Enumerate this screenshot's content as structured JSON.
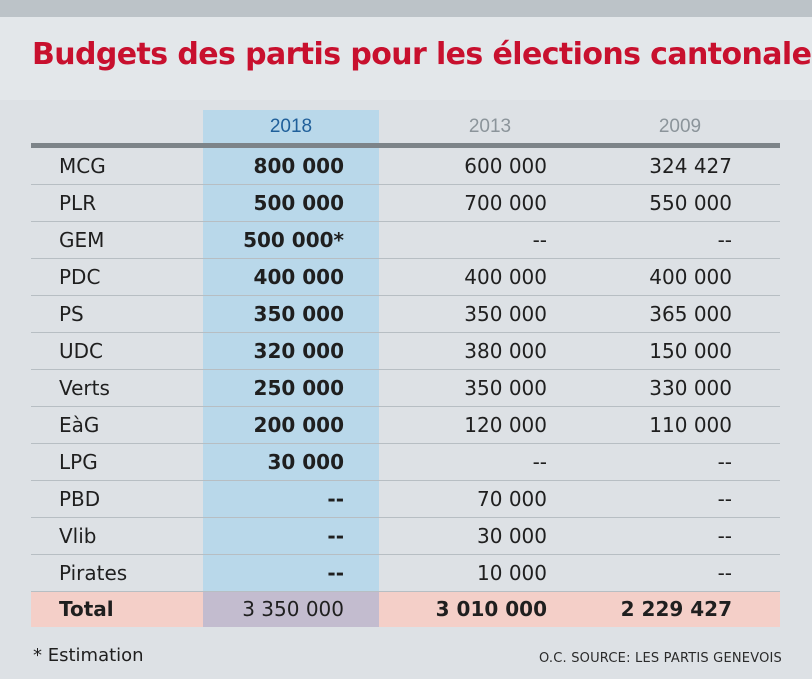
{
  "title": "Budgets des partis pour les élections cantonales",
  "colors": {
    "title": "#c8102e",
    "highlight_column": "#b9d8ea",
    "total_row": "#f4cfc8",
    "total_highlight": "#c3bccf"
  },
  "chart_data": {
    "type": "table",
    "title": "Budgets des partis pour les élections cantonales",
    "columns": [
      "2018",
      "2013",
      "2009"
    ],
    "rows": [
      {
        "party": "MCG",
        "values": [
          "800 000",
          "600 000",
          "324 427"
        ]
      },
      {
        "party": "PLR",
        "values": [
          "500 000",
          "700 000",
          "550 000"
        ]
      },
      {
        "party": "GEM",
        "values": [
          "500 000*",
          "--",
          "--"
        ]
      },
      {
        "party": "PDC",
        "values": [
          "400 000",
          "400 000",
          "400 000"
        ]
      },
      {
        "party": "PS",
        "values": [
          "350 000",
          "350 000",
          "365 000"
        ]
      },
      {
        "party": "UDC",
        "values": [
          "320 000",
          "380 000",
          "150 000"
        ]
      },
      {
        "party": "Verts",
        "values": [
          "250 000",
          "350 000",
          "330 000"
        ]
      },
      {
        "party": "EàG",
        "values": [
          "200 000",
          "120 000",
          "110 000"
        ]
      },
      {
        "party": "LPG",
        "values": [
          "30 000",
          "--",
          "--"
        ]
      },
      {
        "party": "PBD",
        "values": [
          "--",
          "70 000",
          "--"
        ]
      },
      {
        "party": "Vlib",
        "values": [
          "--",
          "30 000",
          "--"
        ]
      },
      {
        "party": "Pirates",
        "values": [
          "--",
          "10 000",
          "--"
        ]
      }
    ],
    "total": {
      "party": "Total",
      "values": [
        "3 350 000",
        "3 010 000",
        "2 229 427"
      ]
    }
  },
  "footnote": "* Estimation",
  "source": "O.C. SOURCE: LES PARTIS GENEVOIS"
}
